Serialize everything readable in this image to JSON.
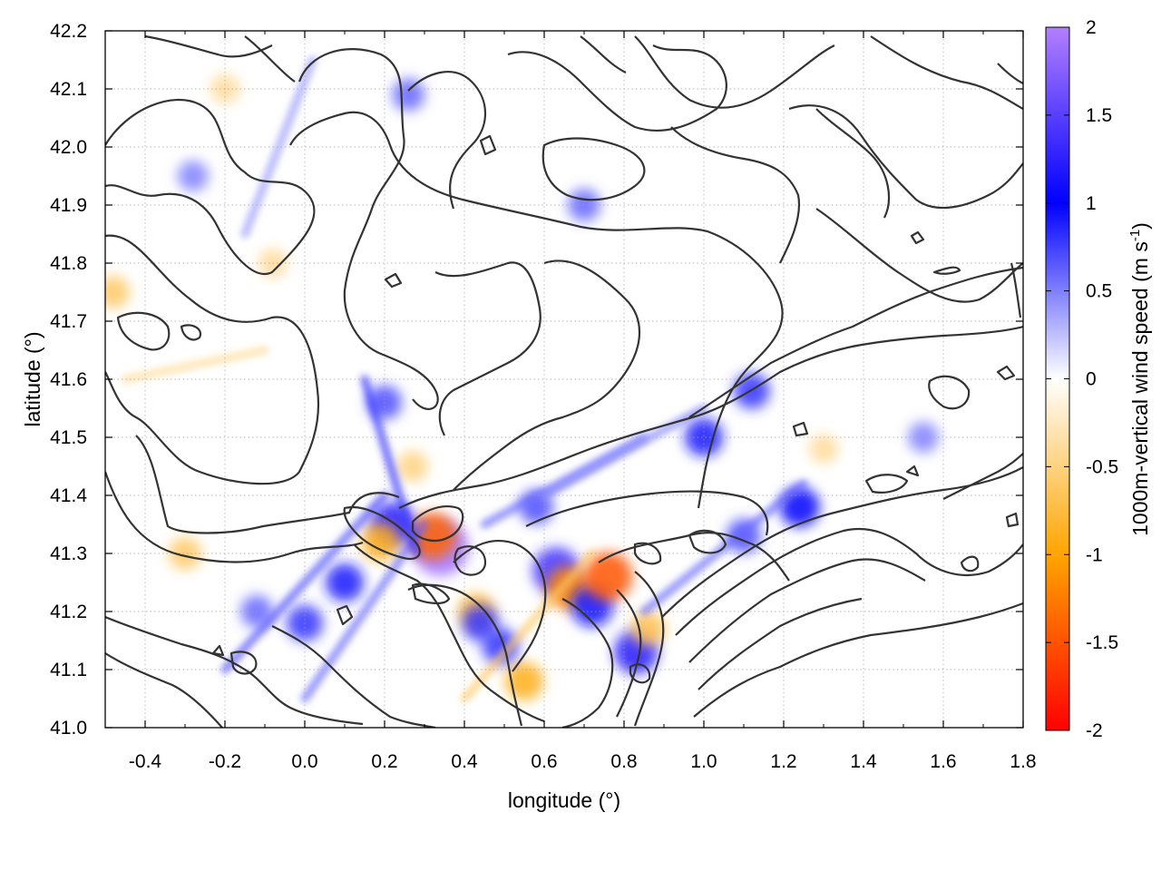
{
  "chart_data": {
    "type": "heatmap",
    "title": "",
    "xlabel": "longitude (°)",
    "ylabel": "latitude (°)",
    "colorbar_label": {
      "prefix": "1000m-vertical wind speed (m s",
      "superscript": "-1",
      "suffix": ")"
    },
    "xlim": [
      -0.5,
      1.8
    ],
    "ylim": [
      41.0,
      42.2
    ],
    "x_ticks": [
      -0.4,
      -0.2,
      0.0,
      0.2,
      0.4,
      0.6,
      0.8,
      1.0,
      1.2,
      1.4,
      1.6,
      1.8
    ],
    "x_tick_labels": [
      "-0.4",
      "-0.2",
      "0.0",
      "0.2",
      "0.4",
      "0.6",
      "0.8",
      "1.0",
      "1.2",
      "1.4",
      "1.6",
      "1.8"
    ],
    "y_ticks": [
      41.0,
      41.1,
      41.2,
      41.3,
      41.4,
      41.5,
      41.6,
      41.7,
      41.8,
      41.9,
      42.0,
      42.1,
      42.2
    ],
    "y_tick_labels": [
      "41.0",
      "41.1",
      "41.2",
      "41.3",
      "41.4",
      "41.5",
      "41.6",
      "41.7",
      "41.8",
      "41.9",
      "42.0",
      "42.1",
      "42.2"
    ],
    "colorbar_range": [
      -2,
      2
    ],
    "colorbar_ticks": [
      -2,
      -1.5,
      -1,
      -0.5,
      0,
      0.5,
      1,
      1.5,
      2
    ],
    "colorbar_tick_labels": [
      "-2",
      "-1.5",
      "-1",
      "-0.5",
      "0",
      "0.5",
      "1",
      "1.5",
      "2"
    ],
    "colormap": [
      {
        "value": -2,
        "color": "#ff0000"
      },
      {
        "value": -1,
        "color": "#ffa500"
      },
      {
        "value": 0,
        "color": "#ffffff"
      },
      {
        "value": 1,
        "color": "#0000ff"
      },
      {
        "value": 2,
        "color": "#b27fff"
      }
    ],
    "grid": true,
    "contour_color": "#333333",
    "hotspots": [
      {
        "x": 0.34,
        "y": 41.31,
        "value": 1.9
      },
      {
        "x": 0.32,
        "y": 41.33,
        "value": -1.4
      },
      {
        "x": 0.22,
        "y": 41.35,
        "value": 1.2
      },
      {
        "x": 0.19,
        "y": 41.32,
        "value": -0.9
      },
      {
        "x": 0.63,
        "y": 41.27,
        "value": 1.4
      },
      {
        "x": 0.66,
        "y": 41.24,
        "value": -1.2
      },
      {
        "x": 0.72,
        "y": 41.21,
        "value": 1.1
      },
      {
        "x": 0.76,
        "y": 41.26,
        "value": -1.5
      },
      {
        "x": 0.55,
        "y": 41.08,
        "value": -0.9
      },
      {
        "x": 0.49,
        "y": 41.14,
        "value": 0.8
      },
      {
        "x": 0.83,
        "y": 41.13,
        "value": 1.2
      },
      {
        "x": 0.86,
        "y": 41.17,
        "value": -0.7
      },
      {
        "x": 0.1,
        "y": 41.25,
        "value": 0.9
      },
      {
        "x": 0.0,
        "y": 41.18,
        "value": 0.8
      },
      {
        "x": -0.3,
        "y": 41.3,
        "value": -0.6
      },
      {
        "x": 0.43,
        "y": 41.2,
        "value": -0.8
      },
      {
        "x": 0.44,
        "y": 41.18,
        "value": 0.8
      },
      {
        "x": 1.0,
        "y": 41.5,
        "value": 0.9
      },
      {
        "x": 1.12,
        "y": 41.58,
        "value": 0.8
      },
      {
        "x": 1.24,
        "y": 41.38,
        "value": 1.0
      },
      {
        "x": 1.1,
        "y": 41.33,
        "value": 0.7
      },
      {
        "x": 0.2,
        "y": 41.56,
        "value": 0.7
      },
      {
        "x": 0.27,
        "y": 41.45,
        "value": -0.5
      },
      {
        "x": -0.48,
        "y": 41.75,
        "value": -0.6
      },
      {
        "x": -0.08,
        "y": 41.8,
        "value": -0.4
      },
      {
        "x": -0.2,
        "y": 42.1,
        "value": -0.4
      },
      {
        "x": 0.26,
        "y": 42.09,
        "value": 0.6
      },
      {
        "x": 0.7,
        "y": 41.9,
        "value": 0.6
      },
      {
        "x": -0.28,
        "y": 41.95,
        "value": 0.5
      },
      {
        "x": 1.3,
        "y": 41.48,
        "value": -0.4
      },
      {
        "x": 1.55,
        "y": 41.5,
        "value": 0.5
      },
      {
        "x": -0.12,
        "y": 41.2,
        "value": 0.6
      },
      {
        "x": 0.58,
        "y": 41.38,
        "value": 0.7
      }
    ],
    "streaks": [
      {
        "x1": -0.2,
        "y1": 41.1,
        "x2": 0.2,
        "y2": 41.4,
        "value": 0.7
      },
      {
        "x1": 0.0,
        "y1": 41.05,
        "x2": 0.3,
        "y2": 41.35,
        "value": 0.6
      },
      {
        "x1": 0.45,
        "y1": 41.35,
        "x2": 0.85,
        "y2": 41.5,
        "value": 0.6
      },
      {
        "x1": 0.6,
        "y1": 41.4,
        "x2": 1.0,
        "y2": 41.55,
        "value": 0.5
      },
      {
        "x1": 0.85,
        "y1": 41.2,
        "x2": 1.25,
        "y2": 41.42,
        "value": 0.6
      },
      {
        "x1": 0.4,
        "y1": 41.05,
        "x2": 0.72,
        "y2": 41.3,
        "value": -0.6
      },
      {
        "x1": -0.45,
        "y1": 41.6,
        "x2": -0.1,
        "y2": 41.65,
        "value": -0.4
      },
      {
        "x1": -0.15,
        "y1": 41.85,
        "x2": 0.02,
        "y2": 42.15,
        "value": 0.4
      },
      {
        "x1": 0.15,
        "y1": 41.6,
        "x2": 0.28,
        "y2": 41.3,
        "value": 0.8
      }
    ]
  }
}
